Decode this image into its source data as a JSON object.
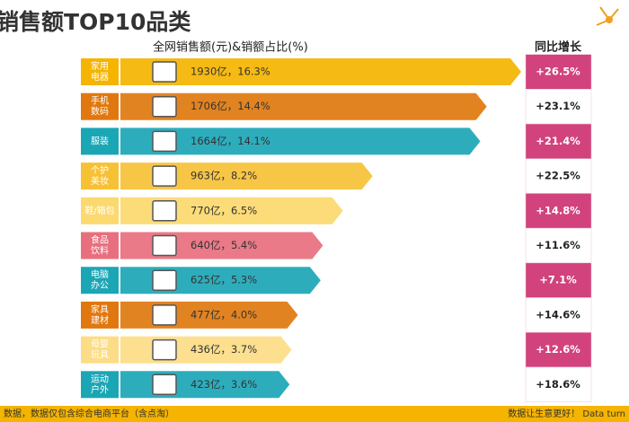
{
  "chart_data": {
    "type": "bar",
    "title": "销售额TOP10品类",
    "subtitle": "全网销售额(元)&销额占比(%)",
    "categories": [
      "家用\n电器",
      "手机\n数码",
      "服装",
      "个护\n美妆",
      "鞋/箱包",
      "食品\n饮料",
      "电脑\n办公",
      "家具\n建材",
      "母婴\n玩具",
      "运动\n户外"
    ],
    "values": [
      1930,
      1706,
      1664,
      963,
      770,
      640,
      625,
      477,
      436,
      423
    ],
    "value_labels": [
      "1930亿，16.3%",
      "1706亿，14.4%",
      "1664亿，14.1%",
      "963亿，8.2%",
      "770亿，6.5%",
      "640亿，5.4%",
      "625亿，5.3%",
      "477亿，4.0%",
      "436亿，3.7%",
      "423亿，3.6%"
    ],
    "colors": [
      "#f5b400",
      "#e0780f",
      "#1ba6b6",
      "#f7c136",
      "#fbd96e",
      "#e86f7e",
      "#1ba6b6",
      "#e0780f",
      "#fcdc86",
      "#1ba6b6"
    ],
    "growth_title": "同比增长",
    "growth": [
      "+26.5%",
      "+23.1%",
      "+21.4%",
      "+22.5%",
      "+14.8%",
      "+11.6%",
      "+7.1%",
      "+14.6%",
      "+12.6%",
      "+18.6%"
    ],
    "growth_colors": [
      "#d2427c",
      "#ffffff",
      "#d2427c",
      "#ffffff",
      "#d2427c",
      "#ffffff",
      "#d2427c",
      "#ffffff",
      "#d2427c",
      "#ffffff"
    ],
    "footer_left": "数据，数据仅包含综合电商平台（含点淘）",
    "footer_right": "数据让生意更好！ Data  turn"
  }
}
